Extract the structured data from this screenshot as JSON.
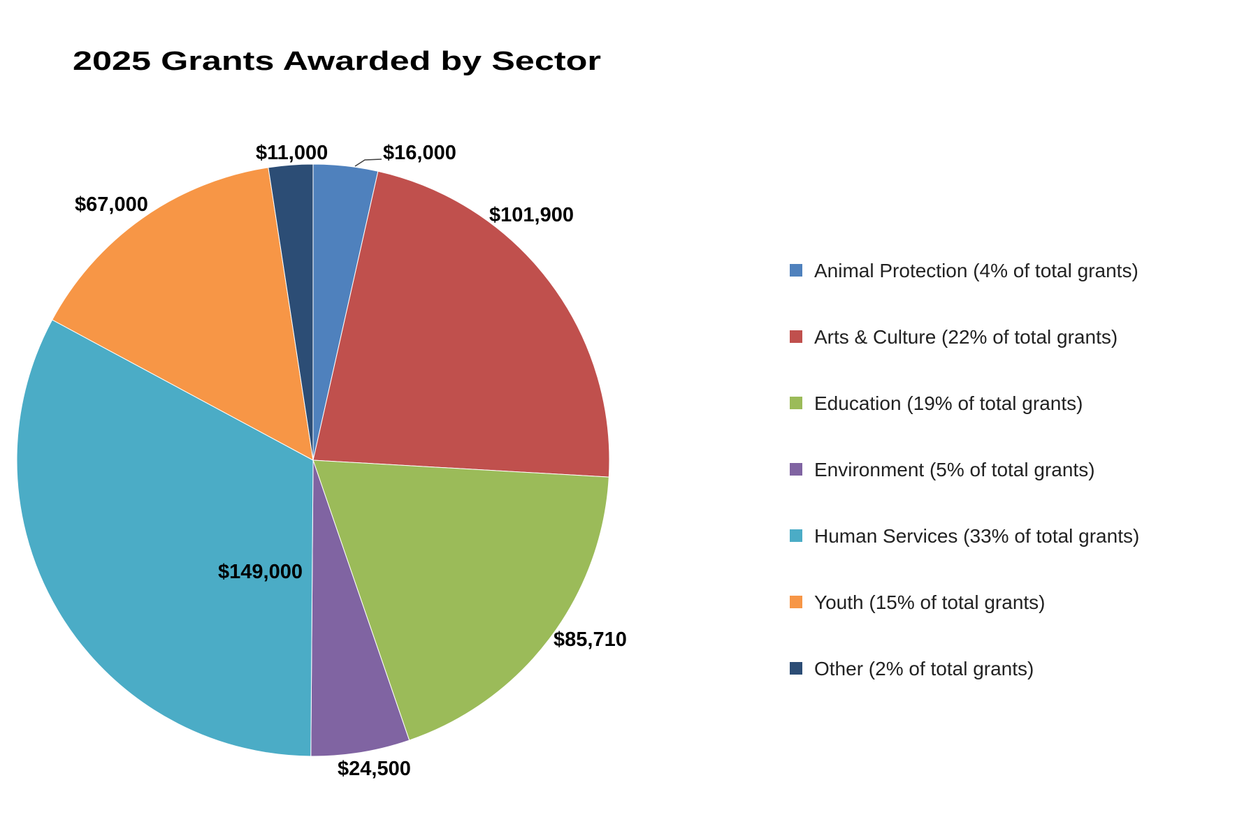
{
  "chart_data": {
    "type": "pie",
    "title": "2025 Grants Awarded by Sector",
    "start_angle_deg": 0,
    "direction": "clockwise",
    "legend_position": "right",
    "slices": [
      {
        "name": "Animal Protection",
        "value": 16000,
        "label": "$16,000",
        "legend": "Animal Protection (4% of total grants)",
        "color": "#4F81BD"
      },
      {
        "name": "Arts & Culture",
        "value": 101900,
        "label": "$101,900",
        "legend": "Arts & Culture (22% of total grants)",
        "color": "#C0504D"
      },
      {
        "name": "Education",
        "value": 85710,
        "label": "$85,710",
        "legend": "Education (19% of total grants)",
        "color": "#9BBB59"
      },
      {
        "name": "Environment",
        "value": 24500,
        "label": "$24,500",
        "legend": "Environment (5% of total grants)",
        "color": "#8064A2"
      },
      {
        "name": "Human Services",
        "value": 149000,
        "label": "$149,000",
        "legend": "Human Services (33% of total grants)",
        "color": "#4BACC6"
      },
      {
        "name": "Youth",
        "value": 67000,
        "label": "$67,000",
        "legend": "Youth (15% of total grants)",
        "color": "#F79646"
      },
      {
        "name": "Other",
        "value": 11000,
        "label": "$11,000",
        "legend": "Other (2% of total grants)",
        "color": "#2C4D75"
      }
    ]
  }
}
